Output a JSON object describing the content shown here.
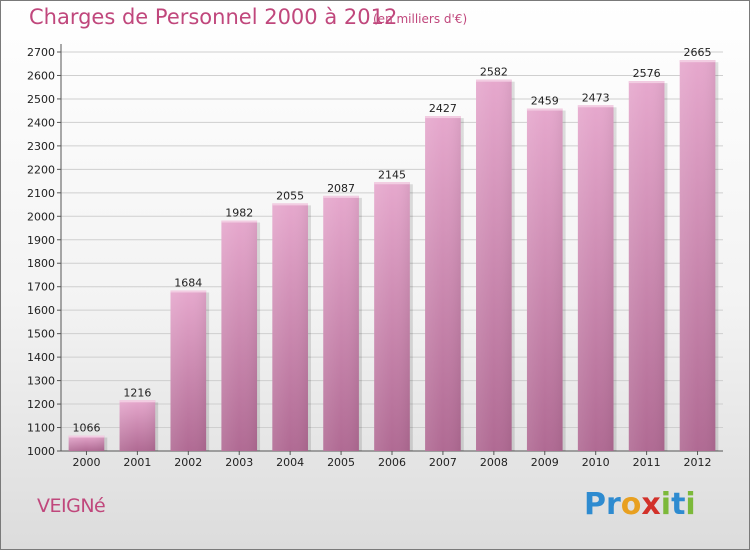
{
  "chart_data": {
    "type": "bar",
    "title": "Charges de Personnel 2000 à 2012",
    "subtitle": "(en milliers d'€)",
    "categories": [
      "2000",
      "2001",
      "2002",
      "2003",
      "2004",
      "2005",
      "2006",
      "2007",
      "2008",
      "2009",
      "2010",
      "2011",
      "2012"
    ],
    "values": [
      1066,
      1216,
      1684,
      1982,
      2055,
      2087,
      2145,
      2427,
      2582,
      2459,
      2473,
      2576,
      2665
    ],
    "ylim": [
      1000,
      2700
    ],
    "yticks": [
      1000,
      1100,
      1200,
      1300,
      1400,
      1500,
      1600,
      1700,
      1800,
      1900,
      2000,
      2100,
      2200,
      2300,
      2400,
      2500,
      2600,
      2700
    ],
    "grid": true,
    "bar_color": "#c77fa8"
  },
  "commune": "VEIGNé",
  "brand": {
    "name": "Proxiti",
    "letters": [
      {
        "ch": "P",
        "color": "#2e8bd0"
      },
      {
        "ch": "r",
        "color": "#2e8bd0"
      },
      {
        "ch": "o",
        "color": "#e8a020"
      },
      {
        "ch": "x",
        "color": "#d2312a"
      },
      {
        "ch": "i",
        "color": "#7cb93a"
      },
      {
        "ch": "t",
        "color": "#2e8bd0"
      },
      {
        "ch": "i",
        "color": "#7cb93a"
      }
    ]
  }
}
